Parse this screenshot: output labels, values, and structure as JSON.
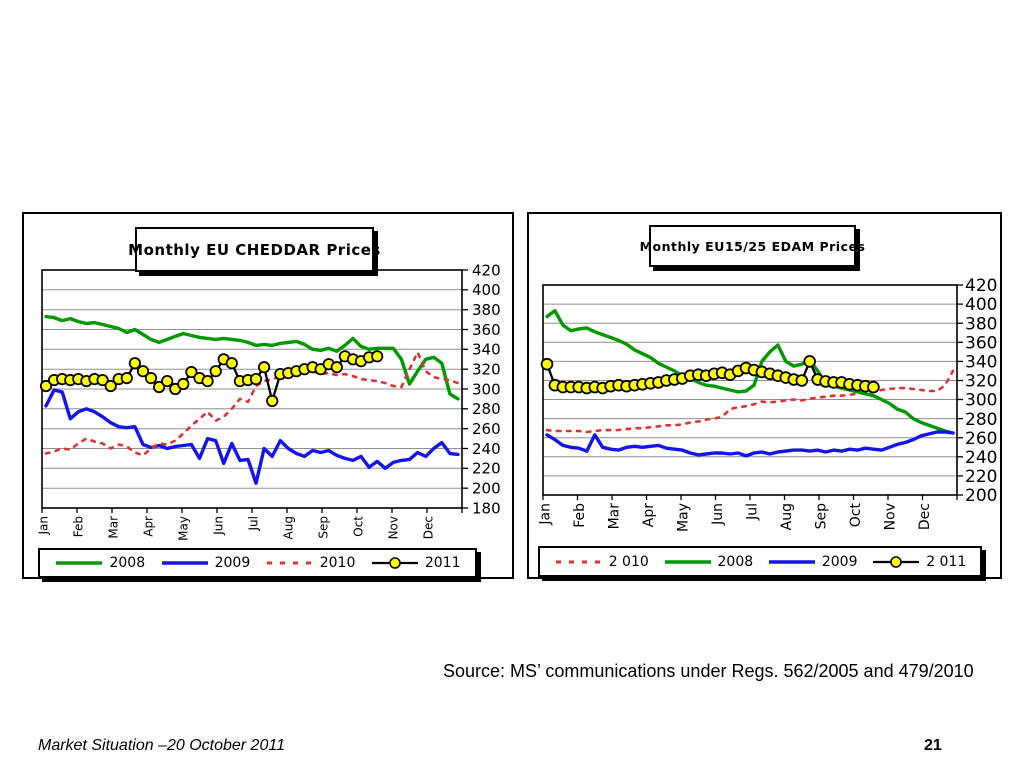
{
  "slide": {
    "source_note": "Source: MS’ communications under Regs. 562/2005 and 479/2010",
    "footer_left": "Market Situation –20 October 2011",
    "page_number": "21"
  },
  "chart_data": [
    {
      "id": "cheddar",
      "type": "line",
      "title": "Monthly EU CHEDDAR Prices",
      "x_tick_labels": [
        "Jan",
        "Feb",
        "Mar",
        "Apr",
        "May",
        "Jun",
        "Jul",
        "Aug",
        "Sep",
        "Oct",
        "Nov",
        "Dec"
      ],
      "ytick_labels": [
        420,
        400,
        380,
        360,
        340,
        320,
        300,
        280,
        260,
        240,
        220,
        200,
        180
      ],
      "ylim": [
        180,
        420
      ],
      "ytick_step": 20,
      "points_per_year": 52,
      "grid": true,
      "y_axis_side": "right",
      "legend_position": "bottom",
      "series": [
        {
          "name": "2008",
          "color": "#009900",
          "style": "solid",
          "width": 3.4,
          "values": [
            373,
            372,
            369,
            371,
            368,
            366,
            367,
            365,
            363,
            361,
            357,
            360,
            355,
            350,
            347,
            350,
            353,
            356,
            354,
            352,
            351,
            350,
            351,
            350,
            349,
            347,
            344,
            345,
            344,
            346,
            347,
            348,
            345,
            340,
            339,
            341,
            338,
            344,
            351,
            343,
            340,
            341,
            341,
            341,
            330,
            305,
            318,
            330,
            332,
            326,
            295,
            290
          ]
        },
        {
          "name": "2009",
          "color": "#1414F0",
          "style": "solid",
          "width": 3.4,
          "values": [
            283,
            299,
            297,
            270,
            277,
            280,
            277,
            272,
            266,
            262,
            261,
            262,
            244,
            241,
            243,
            240,
            242,
            243,
            244,
            230,
            250,
            248,
            225,
            245,
            228,
            229,
            205,
            240,
            232,
            248,
            240,
            235,
            232,
            238,
            236,
            238,
            233,
            230,
            228,
            232,
            221,
            227,
            220,
            226,
            228,
            229,
            236,
            232,
            240,
            246,
            235,
            234
          ]
        },
        {
          "name": "2010",
          "color": "#E03232",
          "style": "dashed",
          "width": 2.6,
          "values": [
            235,
            237,
            240,
            239,
            245,
            250,
            247,
            245,
            240,
            244,
            242,
            236,
            233,
            240,
            245,
            244,
            248,
            255,
            263,
            270,
            277,
            268,
            272,
            280,
            290,
            287,
            303,
            308,
            310,
            312,
            315,
            317,
            316,
            318,
            315,
            316,
            314,
            315,
            313,
            310,
            309,
            308,
            306,
            303,
            302,
            320,
            337,
            318,
            312,
            310,
            309,
            306
          ]
        },
        {
          "name": "2011",
          "color": "#000000",
          "style": "marker",
          "width": 2.3,
          "marker_fill": "#FFFF00",
          "values": [
            303,
            309,
            310,
            309,
            310,
            308,
            310,
            309,
            303,
            310,
            311,
            326,
            318,
            311,
            302,
            308,
            300,
            305,
            317,
            311,
            308,
            318,
            330,
            326,
            308,
            309,
            310,
            322,
            288,
            315,
            316,
            318,
            320,
            322,
            320,
            325,
            322,
            333,
            330,
            328,
            332,
            333
          ]
        }
      ]
    },
    {
      "id": "edam",
      "type": "line",
      "title": "Monthly EU15/25 EDAM Prices",
      "x_tick_labels": [
        "Jan",
        "Feb",
        "Mar",
        "Apr",
        "May",
        "Jun",
        "Jul",
        "Aug",
        "Sep",
        "Oct",
        "Nov",
        "Dec"
      ],
      "ytick_labels": [
        420,
        400,
        380,
        360,
        340,
        320,
        300,
        280,
        260,
        240,
        220,
        200
      ],
      "ylim": [
        200,
        420
      ],
      "ytick_step": 20,
      "points_per_year": 52,
      "grid": true,
      "y_axis_side": "right",
      "legend_position": "bottom",
      "series": [
        {
          "name": "2 010",
          "color": "#E03232",
          "style": "dashed",
          "width": 2.6,
          "values": [
            268,
            267,
            267,
            267,
            267,
            266,
            267,
            268,
            268,
            268,
            269,
            270,
            270,
            271,
            272,
            273,
            273,
            274,
            276,
            277,
            279,
            280,
            282,
            290,
            292,
            293,
            295,
            298,
            297,
            298,
            299,
            300,
            299,
            301,
            302,
            303,
            304,
            304,
            305,
            306,
            307,
            308,
            310,
            311,
            312,
            312,
            311,
            310,
            309,
            309,
            315,
            330
          ]
        },
        {
          "name": "2008",
          "color": "#009900",
          "style": "solid",
          "width": 3.4,
          "values": [
            387,
            393,
            378,
            372,
            374,
            375,
            371,
            368,
            365,
            362,
            358,
            352,
            348,
            344,
            338,
            334,
            330,
            325,
            322,
            318,
            315,
            314,
            312,
            310,
            308,
            309,
            315,
            340,
            350,
            357,
            340,
            335,
            337,
            341,
            330,
            316,
            314,
            312,
            310,
            308,
            306,
            304,
            300,
            296,
            290,
            287,
            280,
            276,
            273,
            270,
            267,
            265
          ]
        },
        {
          "name": "2009",
          "color": "#1414F0",
          "style": "solid",
          "width": 3.4,
          "values": [
            263,
            258,
            252,
            250,
            249,
            246,
            263,
            250,
            248,
            247,
            250,
            251,
            250,
            251,
            252,
            249,
            248,
            247,
            244,
            242,
            243,
            244,
            244,
            243,
            244,
            241,
            244,
            245,
            243,
            245,
            246,
            247,
            247,
            246,
            247,
            245,
            247,
            246,
            248,
            247,
            249,
            248,
            247,
            250,
            253,
            255,
            258,
            262,
            264,
            266,
            266,
            265
          ]
        },
        {
          "name": "2 011",
          "color": "#000000",
          "style": "marker",
          "width": 2.3,
          "marker_fill": "#FFFF00",
          "values": [
            337,
            315,
            313,
            313,
            313,
            312,
            313,
            312,
            314,
            315,
            314,
            315,
            316,
            317,
            318,
            320,
            321,
            322,
            325,
            326,
            325,
            327,
            328,
            326,
            330,
            333,
            331,
            329,
            327,
            325,
            323,
            321,
            320,
            340,
            321,
            319,
            318,
            318,
            316,
            315,
            314,
            313
          ]
        }
      ]
    }
  ]
}
